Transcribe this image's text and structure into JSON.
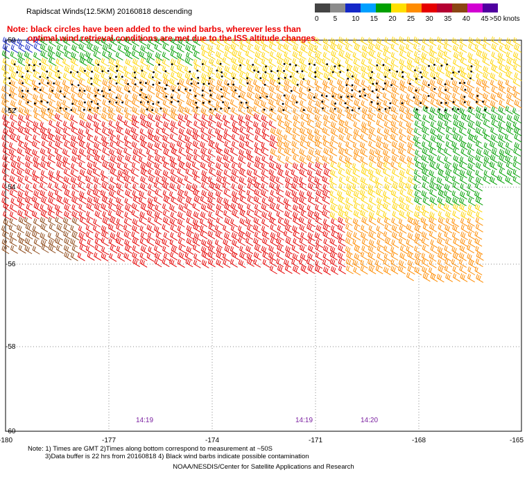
{
  "header": {
    "title": "Rapidscat Winds(12.5KM) 20160818 descending",
    "notice_line1": "Note: black circles have been added to the wind barbs, wherever less than",
    "notice_line2": "optimal wind retrieval conditions are met due to the ISS altitude changes."
  },
  "legend": {
    "labels": [
      "0",
      "5",
      "10",
      "15",
      "20",
      "25",
      "30",
      "35",
      "40",
      "45",
      ">50 knots"
    ],
    "colors": [
      "#444444",
      "#8c8c8c",
      "#1428c8",
      "#00a0ff",
      "#00a000",
      "#ffe000",
      "#ff8c00",
      "#e60000",
      "#b40032",
      "#8b4513",
      "#d200d2",
      "#5000a0"
    ]
  },
  "axes": {
    "lat_labels": [
      "-50",
      "-52",
      "-54",
      "-56",
      "-58",
      "-60"
    ],
    "lon_labels": [
      "-180",
      "-177",
      "-174",
      "-171",
      "-168",
      "-165"
    ]
  },
  "pass_times": [
    "14:19",
    "14:19",
    "14:20"
  ],
  "footer": {
    "note_line1": "Note: 1) Times are GMT 2)Times along bottom correspond to measurement at ~50S",
    "note_line2": "3)Data buffer is 22 hrs from 20160818 4) Black wind barbs indicate possible contamination",
    "credit": "NOAA/NESDIS/Center for Satellite Applications and Research"
  }
}
